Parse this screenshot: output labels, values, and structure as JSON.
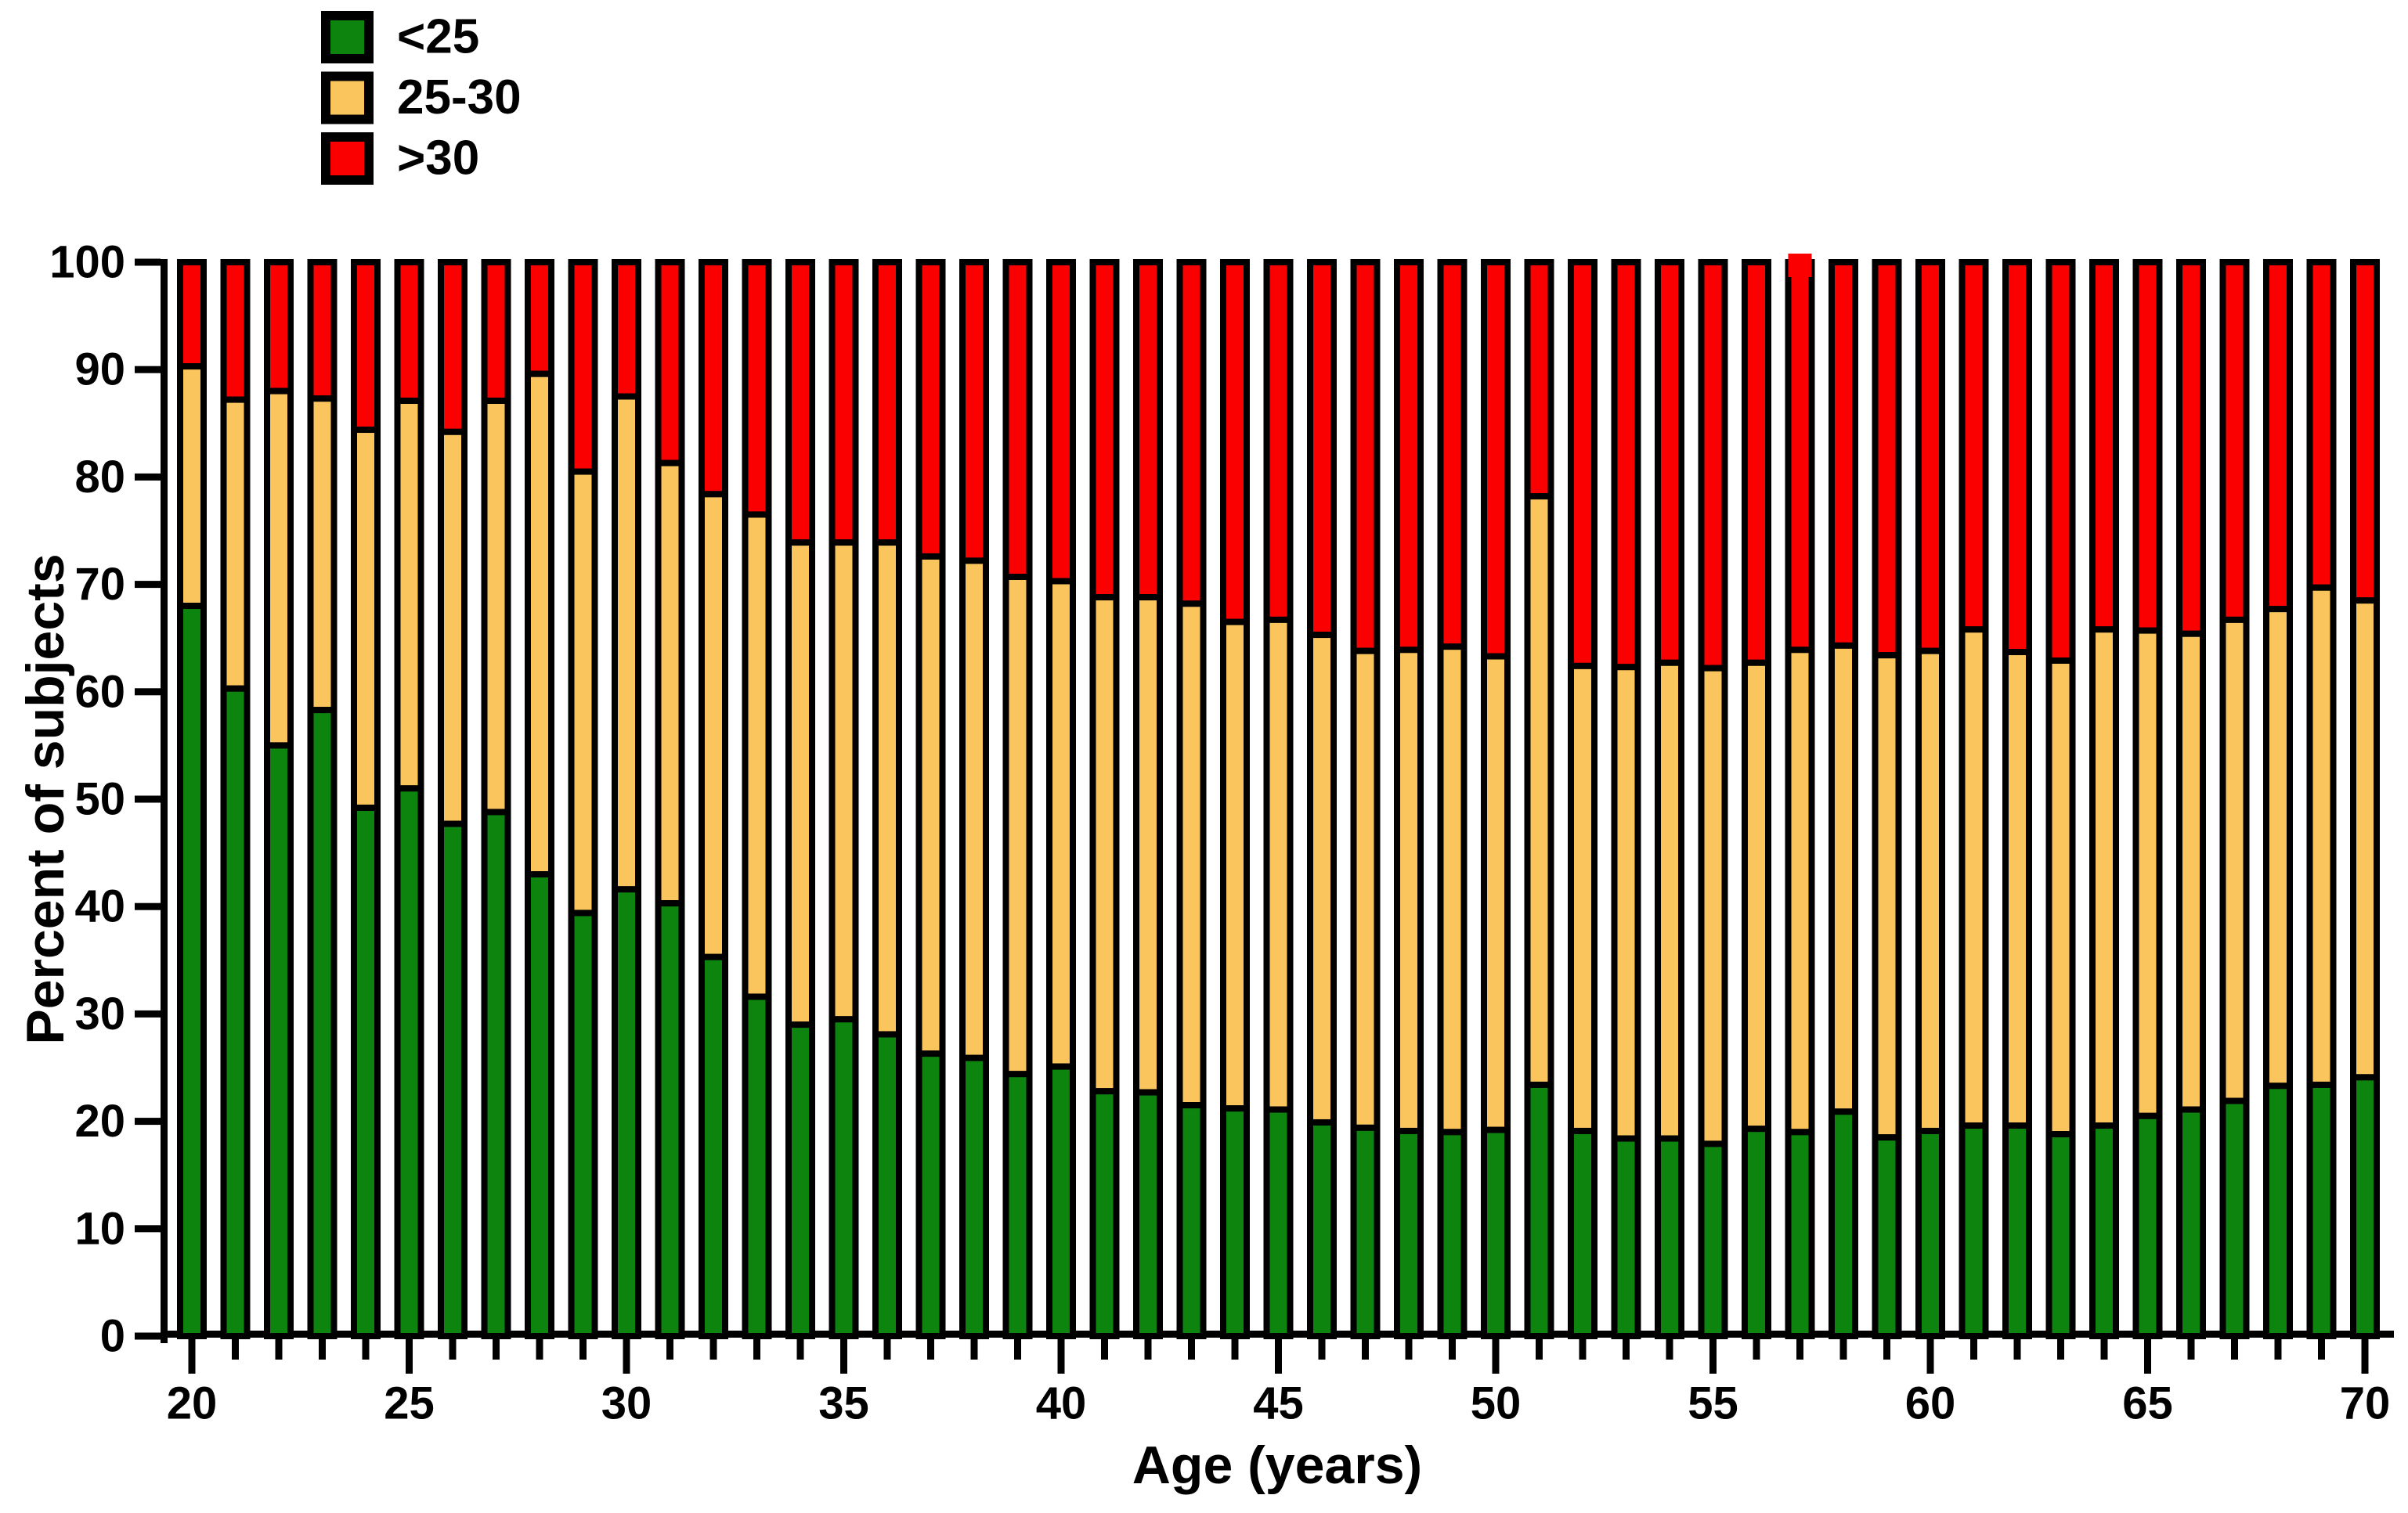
{
  "chart_data": {
    "type": "bar",
    "stacked": true,
    "orientation": "vertical",
    "title": "",
    "xlabel": "Age (years)",
    "ylabel": "Percent of subjects",
    "ylim": [
      0,
      100
    ],
    "y_ticks": [
      0,
      10,
      20,
      30,
      40,
      50,
      60,
      70,
      80,
      90,
      100
    ],
    "x_major_tick_labels": [
      "20",
      "25",
      "30",
      "35",
      "40",
      "45",
      "50",
      "55",
      "60",
      "65",
      "70"
    ],
    "grid": false,
    "legend_position": "top-left",
    "categories": [
      20,
      21,
      22,
      23,
      24,
      25,
      26,
      27,
      28,
      29,
      30,
      31,
      32,
      33,
      34,
      35,
      36,
      37,
      38,
      39,
      40,
      41,
      42,
      43,
      44,
      45,
      46,
      47,
      48,
      49,
      50,
      51,
      52,
      53,
      54,
      55,
      56,
      57,
      58,
      59,
      60,
      61,
      62,
      63,
      64,
      65,
      66,
      67,
      68,
      69,
      70
    ],
    "series": [
      {
        "name": "<25",
        "color": "#0D840D",
        "values": [
          68.0,
          60.3,
          55.0,
          58.3,
          49.2,
          51.0,
          47.7,
          48.8,
          43.0,
          39.4,
          41.6,
          40.3,
          35.3,
          31.6,
          29.0,
          29.5,
          28.1,
          26.3,
          25.9,
          24.4,
          25.1,
          22.8,
          22.7,
          21.5,
          21.2,
          21.1,
          19.9,
          19.4,
          19.1,
          19.0,
          19.2,
          23.4,
          19.1,
          18.4,
          18.4,
          17.9,
          19.3,
          19.0,
          20.9,
          18.5,
          19.1,
          19.6,
          19.6,
          18.8,
          19.6,
          20.5,
          21.1,
          21.9,
          23.3,
          23.4,
          24.1
        ]
      },
      {
        "name": "25-30",
        "color": "#FBC55E",
        "values": [
          22.3,
          26.9,
          33.0,
          29.0,
          35.2,
          36.1,
          36.5,
          38.3,
          46.6,
          41.1,
          45.9,
          41.0,
          43.1,
          44.9,
          44.9,
          44.4,
          45.8,
          46.3,
          46.3,
          46.3,
          45.2,
          46.0,
          46.1,
          46.7,
          45.3,
          45.6,
          45.4,
          44.4,
          44.8,
          45.2,
          44.1,
          54.8,
          43.3,
          43.9,
          44.3,
          44.3,
          43.4,
          44.9,
          43.4,
          44.9,
          44.7,
          46.2,
          44.1,
          44.1,
          46.2,
          45.2,
          44.3,
          44.8,
          44.4,
          46.3,
          44.4
        ]
      },
      {
        "name": ">30",
        "color": "#FA0000",
        "values": [
          9.7,
          12.8,
          12.0,
          12.7,
          15.6,
          12.9,
          15.8,
          12.9,
          10.4,
          19.5,
          12.5,
          18.7,
          21.6,
          23.5,
          26.1,
          26.1,
          26.1,
          27.4,
          27.8,
          29.3,
          29.7,
          31.2,
          31.2,
          31.8,
          33.5,
          33.3,
          34.7,
          36.2,
          36.1,
          35.8,
          36.7,
          21.8,
          37.6,
          37.7,
          37.3,
          37.8,
          37.3,
          36.1,
          35.7,
          36.6,
          36.2,
          34.2,
          36.3,
          37.1,
          34.2,
          34.3,
          34.6,
          33.3,
          32.3,
          30.3,
          31.5
        ]
      }
    ],
    "annotations": [
      {
        "age": 57,
        "note": "red segment overshoots the 100% cap slightly (no black top border on this bar)"
      }
    ],
    "bar_outline_color": "#000000",
    "axis_color": "#000000"
  },
  "legend": {
    "items": [
      {
        "label": "<25",
        "swatch": "green-swatch"
      },
      {
        "label": "25-30",
        "swatch": "tan-swatch"
      },
      {
        "label": ">30",
        "swatch": "red-swatch"
      }
    ]
  }
}
